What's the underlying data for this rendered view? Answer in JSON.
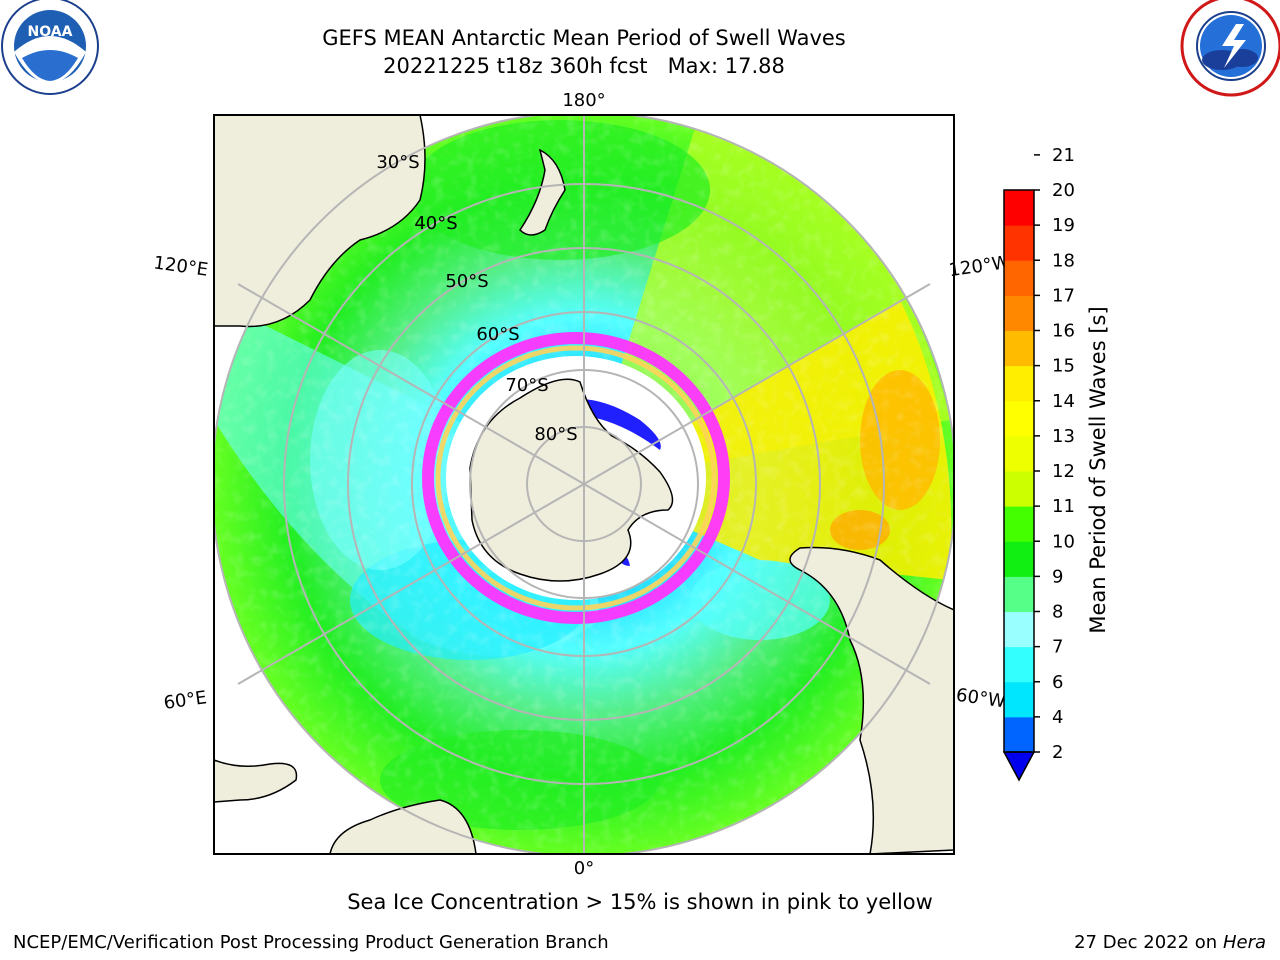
{
  "title": {
    "line1": "GEFS MEAN Antarctic Mean Period of Swell Waves",
    "line2": "20221225 t18z 360h fcst   Max: 17.88"
  },
  "caption": "Sea Ice Concentration > 15% is shown in pink to yellow",
  "credit_left": "NCEP/EMC/Verification Post Processing Product Generation Branch",
  "credit_right": {
    "date": "27 Dec 2022 on",
    "machine": "Hera"
  },
  "logos": {
    "left": {
      "icon": "noaa-logo",
      "text": "NOAA"
    },
    "right": {
      "icon": "nws-logo"
    }
  },
  "map": {
    "projection": "south-polar-stereographic",
    "longitude_labels": {
      "top": "180°",
      "bottom": "0°",
      "upper_left": "120°E",
      "lower_left": "60°E",
      "upper_right": "120°W",
      "lower_right": "60°W"
    },
    "latitude_labels": [
      "30°S",
      "40°S",
      "50°S",
      "60°S",
      "70°S",
      "80°S"
    ],
    "colors": {
      "land": "#efeddc",
      "ice_pink": "#ff33ff",
      "ice_yellow": "#ffd35a"
    }
  },
  "chart_data": {
    "type": "heatmap",
    "colorbar": {
      "label": "Mean Period of Swell Waves [s]",
      "ticks": [
        2,
        4,
        6,
        7,
        8,
        9,
        10,
        11,
        12,
        13,
        14,
        15,
        16,
        17,
        18,
        19,
        20,
        21
      ],
      "tick_labels": [
        "2",
        "4",
        "6",
        "7",
        "8",
        "9",
        "10",
        "11",
        "12",
        "13",
        "14",
        "15",
        "16",
        "17",
        "18",
        "19",
        "20",
        "21"
      ],
      "colors": [
        "#0064ff",
        "#00e6ff",
        "#33ffff",
        "#99ffff",
        "#55ff88",
        "#11ee11",
        "#44ff00",
        "#ccff00",
        "#eeff00",
        "#ffff00",
        "#ffee00",
        "#ffbb00",
        "#ff8800",
        "#ff6600",
        "#ff3300",
        "#ff0000"
      ],
      "extend_min_color": "#0000ee"
    },
    "max_value": 17.88
  }
}
